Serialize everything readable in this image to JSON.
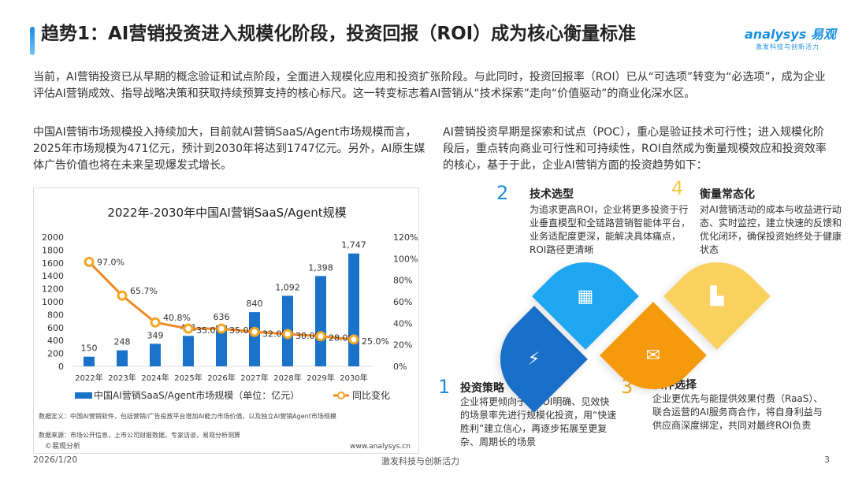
{
  "title": "趋势1：AI营销投资进入规模化阶段，投资回报（ROI）成为核心衡量标准",
  "logo": {
    "brand": "analysys 易观",
    "slogan": "激发科技与创新活力"
  },
  "intro": "当前，AI营销投资已从早期的概念验证和试点阶段，全面进入规模化应用和投资扩张阶段。与此同时，投资回报率（ROI）已从“可选项”转变为“必选项”，成为企业评估AI营销成效、指导战略决策和获取持续预算支持的核心标尺。这一转变标志着AI营销从“技术探索”走向“价值驱动”的商业化深水区。",
  "left_para": "中国AI营销市场规模投入持续加大，目前就AI营销SaaS/Agent市场规模而言，2025年市场规模为471亿元，预计到2030年将达到1747亿元。另外，AI原生媒体广告价值也将在未来呈现爆发式增长。",
  "right_para": "AI营销投资早期是探索和试点（POC），重心是验证技术可行性；进入规模化阶段后，重点转向商业可行性和可持续性，ROI自然成为衡量规模效应和投资效率的核心，基于于此，企业AI营销方面的投资趋势如下：",
  "chart_data": {
    "type": "bar",
    "title": "2022年-2030年中国AI营销SaaS/Agent规模",
    "categories": [
      "2022年",
      "2023年",
      "2024年",
      "2025年",
      "2026年",
      "2027年",
      "2028年",
      "2029年",
      "2030年"
    ],
    "series": [
      {
        "name": "中国AI营销SaaS/Agent市场规模（单位：亿元）",
        "type": "bar",
        "axis": "left",
        "values": [
          150,
          248,
          349,
          471,
          636,
          840,
          1092,
          1398,
          1747
        ],
        "labels": [
          "150",
          "248",
          "349",
          "471",
          "636",
          "840",
          "1,092",
          "1,398",
          "1,747"
        ],
        "color": "#1a73c8"
      },
      {
        "name": "同比变化",
        "type": "line",
        "axis": "right",
        "values": [
          97.0,
          65.7,
          40.8,
          35.0,
          35.0,
          32.0,
          30.0,
          28.0,
          25.0
        ],
        "labels": [
          "97.0%",
          "65.7%",
          "40.8%",
          "35.0%",
          "35.0%",
          "32.0%",
          "30.0%",
          "28.0%",
          "25.0%"
        ],
        "color": "#f08a24"
      }
    ],
    "ylim_left": [
      0,
      2000
    ],
    "yticks_left": [
      "0",
      "200",
      "400",
      "600",
      "800",
      "1000",
      "1200",
      "1400",
      "1600",
      "1800",
      "2000"
    ],
    "ylim_right": [
      0,
      120
    ],
    "yticks_right": [
      "0%",
      "20%",
      "40%",
      "60%",
      "80%",
      "100%",
      "120%"
    ],
    "legend": "bottom",
    "grid": false,
    "note1": "数据定义：中国AI营销软件，包括营销/广告投放平台增加AI能力市场价值，以及独立AI营销Agent市场规模",
    "note2": "数据来源：市场公开信息，上市公司财报数据，专家访谈，易观分析测算",
    "copyright": "©易观分析",
    "website": "www.analysys.cn"
  },
  "trends": [
    {
      "num": "1",
      "title": "投资策略",
      "desc": "企业将更倾向于在ROI明确、见效快的场景率先进行规模化投资，用“快速胜利”建立信心，再逐步拓展至更复杂、周期长的场景",
      "icon": "brain-bolt-icon",
      "color": "#1a6fc9"
    },
    {
      "num": "2",
      "title": "技术选型",
      "desc": "为追求更高ROI，企业将更多投资于行业垂直模型和全链路营销智能体平台，业务适配度更深，能解决具体痛点，ROI路径更清晰",
      "icon": "calendar-icon",
      "color": "#1ea7f0"
    },
    {
      "num": "3",
      "title": "伙伴选择",
      "desc": "企业更优先与能提供效果付费（RaaS）、联合运营的AI服务商合作，将自身利益与供应商深度绑定，共同对最终ROI负责",
      "icon": "chat-clock-icon",
      "color": "#f59a0c"
    },
    {
      "num": "4",
      "title": "衡量常态化",
      "desc": "对AI营销活动的成本与收益进行动态、实时监控，建立快速的反馈和优化闭环，确保投资始终处于健康状态",
      "icon": "steps-icon",
      "color": "#fbd160"
    }
  ],
  "footer": {
    "date": "2026/1/20",
    "slogan": "激发科技与创新活力",
    "page": "3"
  }
}
